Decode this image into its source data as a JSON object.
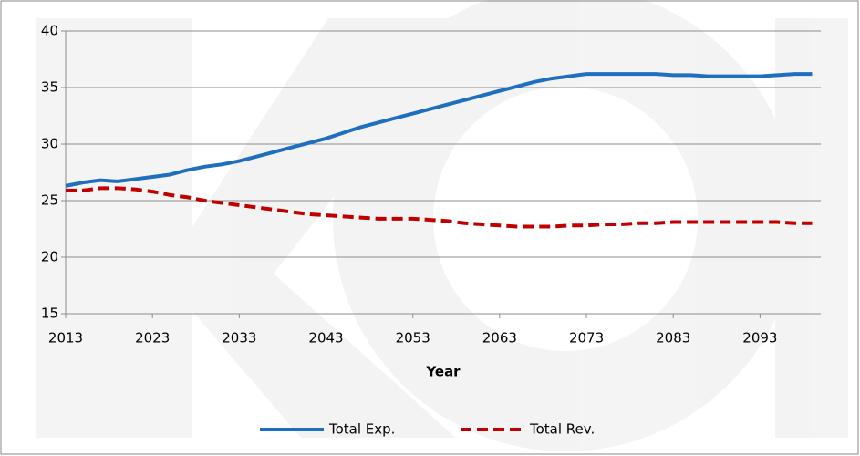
{
  "chart_data": {
    "type": "line",
    "x_label": "Year",
    "x": [
      2013,
      2015,
      2017,
      2019,
      2021,
      2023,
      2025,
      2027,
      2029,
      2031,
      2033,
      2035,
      2037,
      2039,
      2041,
      2043,
      2045,
      2047,
      2049,
      2051,
      2053,
      2055,
      2057,
      2059,
      2061,
      2063,
      2065,
      2067,
      2069,
      2071,
      2073,
      2075,
      2077,
      2079,
      2081,
      2083,
      2085,
      2087,
      2089,
      2091,
      2093,
      2095,
      2097,
      2099
    ],
    "series": [
      {
        "name": "Total Exp.",
        "color": "#1f6fbf",
        "dash": false,
        "values": [
          26.3,
          26.6,
          26.8,
          26.7,
          26.9,
          27.1,
          27.3,
          27.7,
          28.0,
          28.2,
          28.5,
          28.9,
          29.3,
          29.7,
          30.1,
          30.5,
          31.0,
          31.5,
          31.9,
          32.3,
          32.7,
          33.1,
          33.5,
          33.9,
          34.3,
          34.7,
          35.1,
          35.5,
          35.8,
          36.0,
          36.2,
          36.2,
          36.2,
          36.2,
          36.2,
          36.1,
          36.1,
          36.0,
          36.0,
          36.0,
          36.0,
          36.1,
          36.2,
          36.2
        ]
      },
      {
        "name": "Total Rev.",
        "color": "#c00000",
        "dash": true,
        "values": [
          25.9,
          25.9,
          26.1,
          26.1,
          26.0,
          25.8,
          25.5,
          25.3,
          25.0,
          24.8,
          24.6,
          24.4,
          24.2,
          24.0,
          23.8,
          23.7,
          23.6,
          23.5,
          23.4,
          23.4,
          23.4,
          23.3,
          23.2,
          23.0,
          22.9,
          22.8,
          22.7,
          22.7,
          22.7,
          22.8,
          22.8,
          22.9,
          22.9,
          23.0,
          23.0,
          23.1,
          23.1,
          23.1,
          23.1,
          23.1,
          23.1,
          23.1,
          23.0,
          23.0
        ]
      }
    ],
    "xlim": [
      2013,
      2100
    ],
    "xticks": [
      2013,
      2023,
      2033,
      2043,
      2053,
      2063,
      2073,
      2083,
      2093
    ],
    "ylim": [
      15,
      40
    ],
    "yticks": [
      15,
      20,
      25,
      30,
      35,
      40
    ],
    "grid": true,
    "legend": "bottom"
  }
}
